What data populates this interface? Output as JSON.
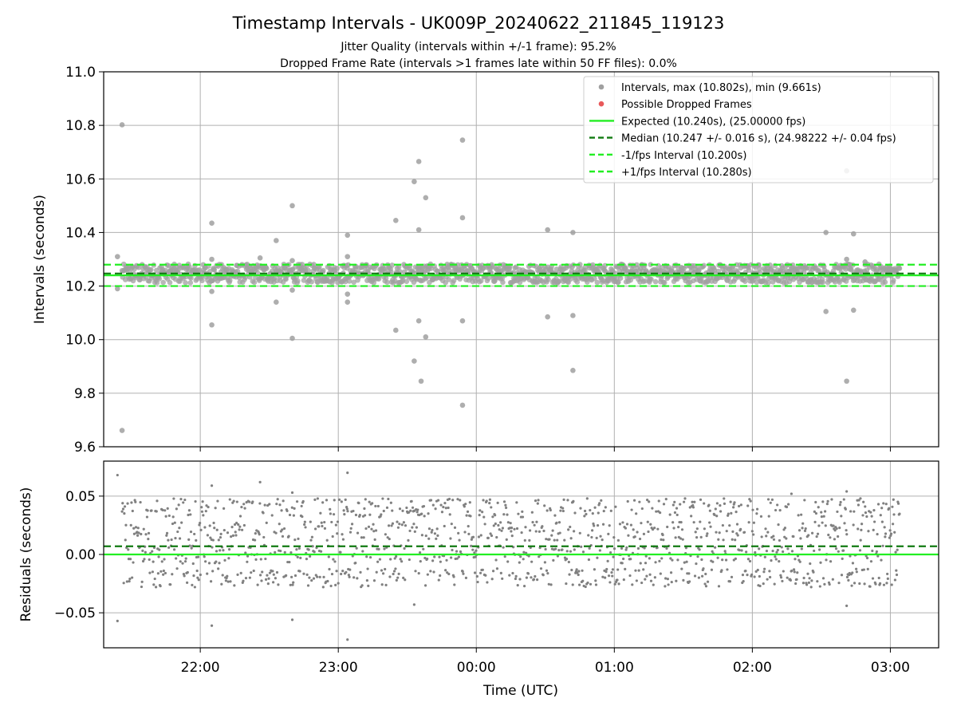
{
  "title": "Timestamp Intervals - UK009P_20240622_211845_119123",
  "subtitle_1": "Jitter Quality (intervals within +/-1 frame): 95.2%",
  "subtitle_2": "Dropped Frame Rate (intervals >1 frames late within 50 FF files): 0.0%",
  "colors": {
    "points": "#a0a0a0",
    "residual_points": "#808080",
    "dropped": "#e8585a",
    "expected": "#22ee22",
    "median": "#107a10",
    "fps_interval": "#22ee22",
    "grid": "#b0b0b0"
  },
  "chart_data": [
    {
      "type": "scatter",
      "panel": "top",
      "ylabel": "Intervals (seconds)",
      "xlim": [
        "21:18",
        "03:21"
      ],
      "ylim": [
        9.6,
        11.0
      ],
      "y_ticks": [
        "9.6",
        "9.8",
        "10.0",
        "10.2",
        "10.4",
        "10.6",
        "10.8",
        "11.0"
      ],
      "grid": true,
      "legend_position": "top-right",
      "legend": [
        {
          "label": "Intervals, max (10.802s), min (9.661s)",
          "kind": "dot",
          "color": "#a0a0a0"
        },
        {
          "label": "Possible Dropped Frames",
          "kind": "dot",
          "color": "#e8585a"
        },
        {
          "label": "Expected (10.240s), (25.00000 fps)",
          "kind": "solid",
          "color": "#22ee22"
        },
        {
          "label": "Median (10.247 +/- 0.016 s), (24.98222 +/- 0.04 fps)",
          "kind": "dashed",
          "color": "#107a10"
        },
        {
          "label": "-1/fps Interval (10.200s)",
          "kind": "dashed",
          "color": "#22ee22"
        },
        {
          "label": "+1/fps Interval (10.280s)",
          "kind": "dashed",
          "color": "#22ee22"
        }
      ],
      "reference_lines": [
        {
          "name": "Expected",
          "y": 10.24,
          "style": "solid",
          "color": "#22ee22"
        },
        {
          "name": "Median",
          "y": 10.247,
          "style": "dashed",
          "color": "#107a10"
        },
        {
          "name": "-1/fps Interval",
          "y": 10.2,
          "style": "dashed",
          "color": "#22ee22"
        },
        {
          "name": "+1/fps Interval",
          "y": 10.28,
          "style": "dashed",
          "color": "#22ee22"
        }
      ],
      "series_band": {
        "name": "Intervals",
        "x_start": "21:26",
        "x_end": "03:04",
        "y_center": 10.247,
        "y_spread": 0.035
      },
      "outliers": [
        {
          "x": "21:24",
          "y": 10.31
        },
        {
          "x": "21:24",
          "y": 10.19
        },
        {
          "x": "21:26",
          "y": 10.802
        },
        {
          "x": "21:26",
          "y": 9.661
        },
        {
          "x": "22:05",
          "y": 10.435
        },
        {
          "x": "22:05",
          "y": 10.3
        },
        {
          "x": "22:05",
          "y": 10.18
        },
        {
          "x": "22:05",
          "y": 10.055
        },
        {
          "x": "22:26",
          "y": 10.305
        },
        {
          "x": "22:33",
          "y": 10.37
        },
        {
          "x": "22:33",
          "y": 10.14
        },
        {
          "x": "22:40",
          "y": 10.5
        },
        {
          "x": "22:40",
          "y": 10.295
        },
        {
          "x": "22:40",
          "y": 10.185
        },
        {
          "x": "22:40",
          "y": 10.005
        },
        {
          "x": "23:04",
          "y": 10.39
        },
        {
          "x": "23:04",
          "y": 10.31
        },
        {
          "x": "23:04",
          "y": 10.17
        },
        {
          "x": "23:04",
          "y": 10.14
        },
        {
          "x": "23:25",
          "y": 10.445
        },
        {
          "x": "23:25",
          "y": 10.035
        },
        {
          "x": "23:33",
          "y": 10.59
        },
        {
          "x": "23:33",
          "y": 9.92
        },
        {
          "x": "23:35",
          "y": 10.665
        },
        {
          "x": "23:35",
          "y": 10.41
        },
        {
          "x": "23:35",
          "y": 10.07
        },
        {
          "x": "23:36",
          "y": 9.845
        },
        {
          "x": "23:38",
          "y": 10.53
        },
        {
          "x": "23:38",
          "y": 10.01
        },
        {
          "x": "23:54",
          "y": 10.745
        },
        {
          "x": "23:54",
          "y": 10.455
        },
        {
          "x": "23:54",
          "y": 10.07
        },
        {
          "x": "23:54",
          "y": 9.755
        },
        {
          "x": "00:31",
          "y": 10.41
        },
        {
          "x": "00:31",
          "y": 10.085
        },
        {
          "x": "00:42",
          "y": 10.4
        },
        {
          "x": "00:42",
          "y": 10.09
        },
        {
          "x": "00:42",
          "y": 9.885
        },
        {
          "x": "02:32",
          "y": 10.4
        },
        {
          "x": "02:32",
          "y": 10.105
        },
        {
          "x": "02:41",
          "y": 10.63
        },
        {
          "x": "02:41",
          "y": 10.3
        },
        {
          "x": "02:41",
          "y": 9.845
        },
        {
          "x": "02:44",
          "y": 10.395
        },
        {
          "x": "02:44",
          "y": 10.11
        },
        {
          "x": "02:49",
          "y": 10.29
        }
      ],
      "dropped_frames": []
    },
    {
      "type": "scatter",
      "panel": "bottom",
      "ylabel": "Residuals (seconds)",
      "xlabel": "Time (UTC)",
      "xlim": [
        "21:18",
        "03:21"
      ],
      "ylim": [
        -0.08,
        0.08
      ],
      "y_ticks": [
        {
          "value": 0.05,
          "label": "0.05"
        },
        {
          "value": 0.0,
          "label": "0.00"
        },
        {
          "value": -0.05,
          "label": "−0.05"
        }
      ],
      "x_ticks": [
        "22:00",
        "23:00",
        "00:00",
        "01:00",
        "02:00",
        "03:00"
      ],
      "grid": true,
      "reference_lines": [
        {
          "name": "Expected",
          "y": 0.0,
          "style": "solid",
          "color": "#22ee22"
        },
        {
          "name": "Median",
          "y": 0.007,
          "style": "dashed",
          "color": "#107a10"
        }
      ],
      "series_band": {
        "name": "Residuals",
        "x_start": "21:26",
        "x_end": "03:04",
        "levels": [
          -0.02,
          0.0,
          0.02,
          0.04
        ],
        "y_spread": 0.008
      },
      "outliers": [
        {
          "x": "21:24",
          "y": 0.068
        },
        {
          "x": "21:24",
          "y": -0.057
        },
        {
          "x": "22:05",
          "y": 0.059
        },
        {
          "x": "22:05",
          "y": -0.061
        },
        {
          "x": "22:26",
          "y": 0.062
        },
        {
          "x": "22:40",
          "y": 0.053
        },
        {
          "x": "22:40",
          "y": -0.056
        },
        {
          "x": "23:04",
          "y": 0.07
        },
        {
          "x": "23:04",
          "y": -0.073
        },
        {
          "x": "02:41",
          "y": 0.054
        },
        {
          "x": "02:41",
          "y": -0.044
        },
        {
          "x": "02:47",
          "y": 0.048
        },
        {
          "x": "02:17",
          "y": 0.052
        },
        {
          "x": "01:52",
          "y": 0.043
        },
        {
          "x": "00:42",
          "y": 0.045
        },
        {
          "x": "23:33",
          "y": -0.043
        }
      ]
    }
  ]
}
